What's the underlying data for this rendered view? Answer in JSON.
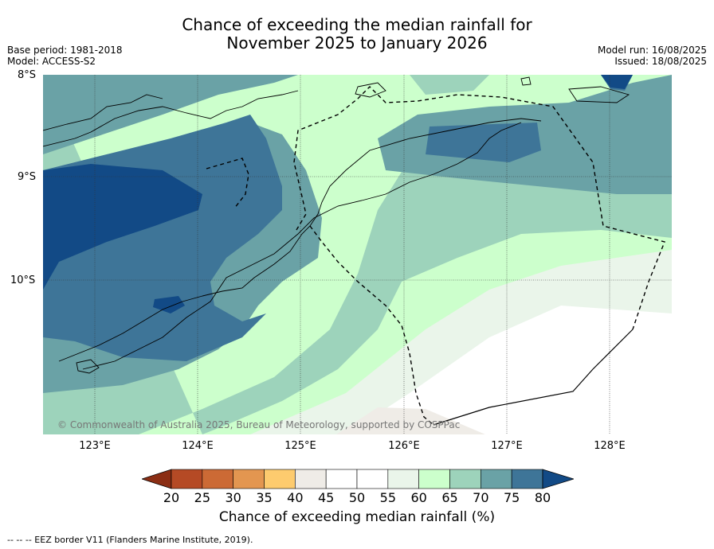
{
  "title": {
    "line1": "Chance of exceeding the median rainfall for",
    "line2": "November 2025 to January 2026"
  },
  "meta": {
    "base_period": "Base period: 1981-2018",
    "model": "Model: ACCESS-S2",
    "model_run": "Model run: 16/08/2025",
    "issued": "Issued: 18/08/2025"
  },
  "axes": {
    "latitudes": [
      "8°S",
      "9°S",
      "10°S"
    ],
    "longitudes": [
      "123°E",
      "124°E",
      "125°E",
      "126°E",
      "127°E",
      "128°E"
    ]
  },
  "copyright": "© Commonwealth of Australia 2025, Bureau of Meteorology, supported by COSPPac",
  "colorbar": {
    "label": "Chance of exceeding median rainfall (%)",
    "ticks": [
      "20",
      "25",
      "30",
      "35",
      "40",
      "45",
      "50",
      "55",
      "60",
      "65",
      "70",
      "75",
      "80"
    ],
    "colors": [
      "#8b2e14",
      "#b54a25",
      "#cc6a35",
      "#e39650",
      "#fdcb6e",
      "#efece7",
      "#ffffff",
      "#ffffff",
      "#eaf5ea",
      "#ccffcc",
      "#9dd3bb",
      "#6aa2a6",
      "#3e7598",
      "#124a86"
    ]
  },
  "footnote": "--  --  -- EEZ border V11 (Flanders Marine Institute, 2019)."
}
